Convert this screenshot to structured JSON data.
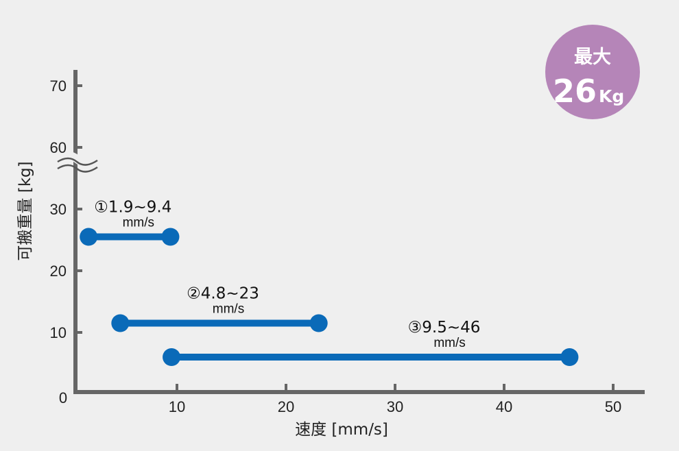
{
  "chart_data": {
    "type": "range-bar",
    "xlabel": "速度 [mm/s]",
    "ylabel": "可搬重量 [kg]",
    "x_ticks": [
      10,
      20,
      30,
      40,
      50
    ],
    "y_ticks": [
      10,
      20,
      30,
      60,
      70
    ],
    "origin_label": "0",
    "y_axis_break": "between 30 and 60",
    "colors": {
      "bar": "#0a6ab8",
      "axis": "#666666",
      "badge": "#b585b8"
    },
    "series": [
      {
        "label": "①1.9~9.4",
        "unit": "mm/s",
        "x_min": 1.9,
        "x_max": 9.4,
        "y": 25.5
      },
      {
        "label": "②4.8~23",
        "unit": "mm/s",
        "x_min": 4.8,
        "x_max": 23,
        "y": 11.5
      },
      {
        "label": "③9.5~46",
        "unit": "mm/s",
        "x_min": 9.5,
        "x_max": 46,
        "y": 6
      }
    ],
    "badge": {
      "line1": "最大",
      "value": "26",
      "unit": "Kg"
    }
  }
}
